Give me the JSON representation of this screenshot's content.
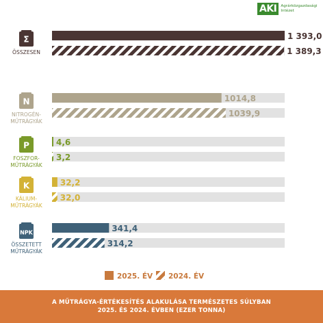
{
  "logo": {
    "mark": "AKI",
    "text": "Agrárközgazdasági Intézet"
  },
  "footer": {
    "line1": "A MŰTRÁGYA-ÉRTÉKESÍTÉS ALAKULÁSA TERMÉSZETES SÚLYBAN",
    "line2": "2025. ÉS 2024. ÉVBEN (EZER TONNA)"
  },
  "chart_data": {
    "type": "bar",
    "orientation": "horizontal",
    "unit": "ezer tonna",
    "categories": [
      {
        "icon_letter": "Σ",
        "label_lines": [
          "ÖSSZESEN"
        ],
        "color": "#4a3533",
        "values": [
          1393.0,
          1389.3
        ],
        "labels": [
          "1 393,0",
          "1 389,3"
        ]
      },
      {
        "icon_letter": "N",
        "label_lines": [
          "NITROGÉN-",
          "MŰTRÁGYÁK"
        ],
        "color": "#aea48c",
        "values": [
          1014.8,
          1039.9
        ],
        "labels": [
          "1014,8",
          "1039,9"
        ]
      },
      {
        "icon_letter": "P",
        "label_lines": [
          "FOSZFOR-",
          "MŰTRÁGYÁK"
        ],
        "color": "#7a9a2a",
        "values": [
          4.6,
          3.2
        ],
        "labels": [
          "4,6",
          "3,2"
        ]
      },
      {
        "icon_letter": "K",
        "label_lines": [
          "KÁLIUM-",
          "MŰTRÁGYÁK"
        ],
        "color": "#d3b236",
        "values": [
          32.2,
          32.0
        ],
        "labels": [
          "32,2",
          "32,0"
        ]
      },
      {
        "icon_letter": "NPK",
        "label_lines": [
          "ÖSSZETETT",
          "MŰTRÁGYÁK"
        ],
        "color": "#3f6178",
        "values": [
          341.4,
          314.2
        ],
        "labels": [
          "341,4",
          "314,2"
        ]
      }
    ],
    "series": [
      {
        "name": "2025. ÉV",
        "style": "solid"
      },
      {
        "name": "2024. ÉV",
        "style": "hatched"
      }
    ],
    "xlim": [
      0,
      1393.0
    ],
    "background_track_color": "#e2e2e2",
    "legend_color": "#c87a3e",
    "legend_position": "bottom-center",
    "grid": false
  }
}
